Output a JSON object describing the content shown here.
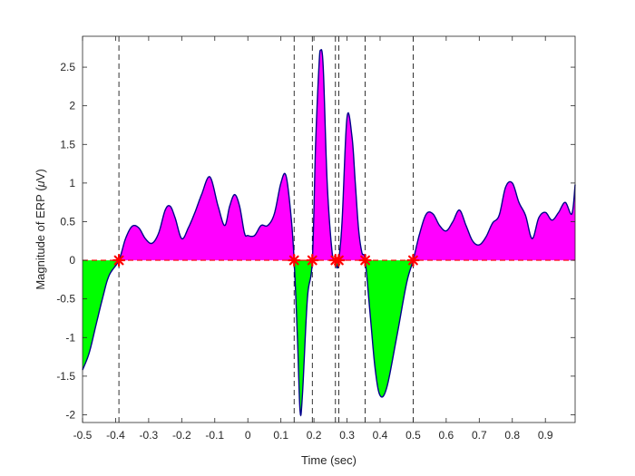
{
  "chart_data": {
    "type": "area",
    "title": "",
    "xlabel": "Time (sec)",
    "ylabel_prefix": "Magnitude of ERP (",
    "ylabel_mu": "μ",
    "ylabel_suffix": "V)",
    "xlim": [
      -0.5,
      0.99
    ],
    "ylim": [
      -2.1,
      2.9
    ],
    "x_ticks": [
      -0.5,
      -0.4,
      -0.3,
      -0.2,
      -0.1,
      0,
      0.1,
      0.2,
      0.3,
      0.4,
      0.5,
      0.6,
      0.7,
      0.8,
      0.9
    ],
    "x_tick_labels": [
      "-0.5",
      "-0.4",
      "-0.3",
      "-0.2",
      "-0.1",
      "0",
      "0.1",
      "0.2",
      "0.3",
      "0.4",
      "0.5",
      "0.6",
      "0.7",
      "0.8",
      "0.9"
    ],
    "y_ticks": [
      -2,
      -1.5,
      -1,
      -0.5,
      0,
      0.5,
      1,
      1.5,
      2,
      2.5
    ],
    "y_tick_labels": [
      "-2",
      "-1.5",
      "-1",
      "-0.5",
      "0",
      "0.5",
      "1",
      "1.5",
      "2",
      "2.5"
    ],
    "series": [
      {
        "x": [
          -0.5,
          -0.48,
          -0.46,
          -0.44,
          -0.42,
          -0.39,
          -0.37,
          -0.35,
          -0.33,
          -0.31,
          -0.29,
          -0.27,
          -0.25,
          -0.235,
          -0.22,
          -0.2,
          -0.18,
          -0.16,
          -0.14,
          -0.115,
          -0.09,
          -0.07,
          -0.055,
          -0.04,
          -0.025,
          -0.01,
          0.0,
          0.02,
          0.04,
          0.06,
          0.08,
          0.1,
          0.115,
          0.13,
          0.14,
          0.15,
          0.158,
          0.165,
          0.18,
          0.195,
          0.205,
          0.215,
          0.22,
          0.228,
          0.24,
          0.255,
          0.265,
          0.27,
          0.275,
          0.285,
          0.3,
          0.315,
          0.325,
          0.335,
          0.345,
          0.355,
          0.37,
          0.385,
          0.4,
          0.42,
          0.45,
          0.48,
          0.5,
          0.52,
          0.54,
          0.56,
          0.58,
          0.6,
          0.62,
          0.64,
          0.66,
          0.68,
          0.7,
          0.72,
          0.74,
          0.76,
          0.78,
          0.8,
          0.82,
          0.84,
          0.86,
          0.88,
          0.9,
          0.92,
          0.94,
          0.96,
          0.98,
          0.99
        ],
        "y": [
          -1.42,
          -1.2,
          -0.85,
          -0.5,
          -0.2,
          0.0,
          0.28,
          0.44,
          0.42,
          0.28,
          0.22,
          0.35,
          0.65,
          0.7,
          0.55,
          0.28,
          0.42,
          0.62,
          0.85,
          1.08,
          0.7,
          0.45,
          0.7,
          0.85,
          0.7,
          0.35,
          0.32,
          0.32,
          0.45,
          0.45,
          0.6,
          1.0,
          1.1,
          0.6,
          0.0,
          -1.0,
          -1.95,
          -1.75,
          -0.5,
          0.0,
          1.5,
          2.5,
          2.72,
          2.5,
          1.0,
          0.1,
          0.0,
          -0.1,
          0.0,
          0.5,
          1.85,
          1.6,
          1.0,
          0.4,
          0.1,
          0.0,
          -0.7,
          -1.4,
          -1.75,
          -1.65,
          -1.0,
          -0.3,
          0.0,
          0.35,
          0.6,
          0.6,
          0.45,
          0.38,
          0.5,
          0.65,
          0.45,
          0.25,
          0.2,
          0.3,
          0.48,
          0.58,
          0.95,
          1.0,
          0.75,
          0.58,
          0.28,
          0.55,
          0.62,
          0.52,
          0.62,
          0.75,
          0.6,
          0.98
        ]
      }
    ],
    "zero_crossings": [
      -0.39,
      0.14,
      0.195,
      0.265,
      0.275,
      0.355,
      0.5
    ],
    "dashed_vlines": [
      -0.39,
      0.14,
      0.195,
      0.265,
      0.275,
      0.355,
      0.5
    ],
    "colors": {
      "line": "#00008b",
      "positive_fill": "#ff00ff",
      "negative_fill": "#00ff00",
      "zero_line": "#ff0000",
      "markers": "#ff0000",
      "vlines": "#000000",
      "axes": "#262626"
    }
  }
}
